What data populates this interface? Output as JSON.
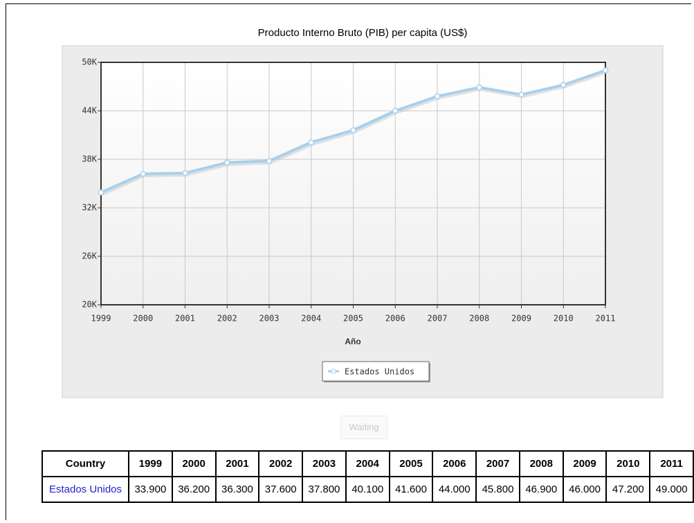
{
  "chart_data": {
    "type": "line",
    "title": "Producto Interno Bruto (PIB) per capita (US$)",
    "x_label": "Año",
    "x": [
      1999,
      2000,
      2001,
      2002,
      2003,
      2004,
      2005,
      2006,
      2007,
      2008,
      2009,
      2010,
      2011
    ],
    "xlim": [
      1999,
      2011
    ],
    "xticks": [
      1999,
      2000,
      2001,
      2002,
      2003,
      2004,
      2005,
      2006,
      2007,
      2008,
      2009,
      2010,
      2011
    ],
    "series": [
      {
        "name": "Estados Unidos",
        "color": "#a8d0ec",
        "values": [
          33900,
          36200,
          36300,
          37600,
          37800,
          40100,
          41600,
          44000,
          45800,
          46900,
          46000,
          47200,
          49000
        ]
      }
    ],
    "ylim": [
      20000,
      50000
    ],
    "yticks": [
      {
        "value": 20000,
        "label": "20K"
      },
      {
        "value": 26000,
        "label": "26K"
      },
      {
        "value": 32000,
        "label": "32K"
      },
      {
        "value": 38000,
        "label": "38K"
      },
      {
        "value": 44000,
        "label": "44K"
      },
      {
        "value": 50000,
        "label": "50K"
      }
    ],
    "grid": true,
    "legend": "bottom"
  },
  "button": {
    "label": "Waiting"
  },
  "table": {
    "header": [
      "Country",
      "1999",
      "2000",
      "2001",
      "2002",
      "2003",
      "2004",
      "2005",
      "2006",
      "2007",
      "2008",
      "2009",
      "2010",
      "2011"
    ],
    "rows": [
      [
        "Estados Unidos",
        "33.900",
        "36.200",
        "36.300",
        "37.600",
        "37.800",
        "40.100",
        "41.600",
        "44.000",
        "45.800",
        "46.900",
        "46.000",
        "47.200",
        "49.000"
      ]
    ]
  }
}
